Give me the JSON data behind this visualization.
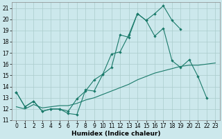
{
  "title": "",
  "xlabel": "Humidex (Indice chaleur)",
  "bg_color": "#cce8ec",
  "grid_color": "#aacccc",
  "line_color": "#1a7a6a",
  "xlim": [
    -0.5,
    23.5
  ],
  "ylim": [
    11,
    21.5
  ],
  "yticks": [
    11,
    12,
    13,
    14,
    15,
    16,
    17,
    18,
    19,
    20,
    21
  ],
  "xticks": [
    0,
    1,
    2,
    3,
    4,
    5,
    6,
    7,
    8,
    9,
    10,
    11,
    12,
    13,
    14,
    15,
    16,
    17,
    18,
    19,
    20,
    21,
    22,
    23
  ],
  "line1_x": [
    0,
    1,
    2,
    3,
    4,
    5,
    6,
    7,
    8,
    9,
    10,
    11,
    12,
    13,
    14,
    15,
    16,
    17,
    18,
    19
  ],
  "line1_y": [
    13.5,
    12.2,
    12.7,
    11.8,
    12.0,
    12.0,
    11.6,
    11.5,
    13.7,
    13.6,
    15.1,
    15.7,
    18.6,
    18.4,
    20.5,
    19.9,
    20.5,
    21.2,
    19.9,
    19.1
  ],
  "line2_x": [
    0,
    1,
    2,
    3,
    4,
    5,
    6,
    7,
    8,
    9,
    10,
    11,
    12,
    13,
    14,
    15,
    16,
    17,
    18,
    19,
    20,
    21,
    22
  ],
  "line2_y": [
    13.5,
    12.2,
    12.7,
    11.8,
    12.0,
    12.0,
    11.8,
    12.9,
    13.6,
    14.6,
    15.1,
    16.9,
    17.1,
    18.6,
    20.5,
    19.9,
    18.5,
    19.2,
    16.3,
    15.7,
    16.4,
    14.9,
    13.0
  ],
  "line3_x": [
    0,
    1,
    2,
    3,
    4,
    5,
    6,
    7,
    8,
    9,
    10,
    11,
    12,
    13,
    14,
    15,
    16,
    17,
    18,
    19,
    20,
    21,
    22,
    23
  ],
  "line3_y": [
    12.2,
    12.0,
    12.4,
    12.1,
    12.2,
    12.3,
    12.3,
    12.5,
    12.8,
    13.0,
    13.3,
    13.6,
    13.9,
    14.2,
    14.6,
    14.9,
    15.2,
    15.4,
    15.6,
    15.8,
    15.9,
    15.9,
    16.0,
    16.1
  ],
  "xlabel_fontsize": 6.5,
  "tick_fontsize": 5.5
}
